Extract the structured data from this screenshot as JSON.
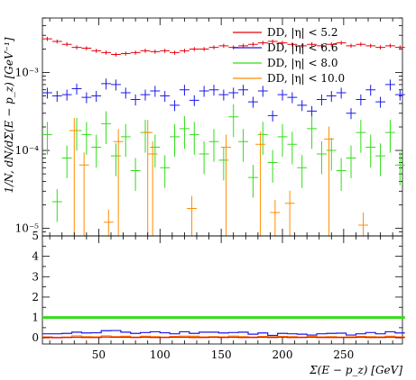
{
  "chart_data": [
    {
      "type": "scatter",
      "role": "main",
      "ylabel": "1/N, dN/dΣ(E − p_z) [GeV⁻¹]",
      "yscale": "log",
      "ylim": [
        8e-06,
        0.005
      ],
      "xlim": [
        4,
        298
      ],
      "ytick_labels": [
        {
          "value": 1e-05,
          "label": "10⁻⁵"
        },
        {
          "value": 0.0001,
          "label": "10⁻⁴"
        },
        {
          "value": 0.001,
          "label": "10⁻³"
        }
      ],
      "legend_position": "top-right",
      "series": [
        {
          "name": "DD, |η| < 5.2",
          "color": "#e8000b",
          "marker": "errorbar",
          "x": [
            8,
            16,
            24,
            32,
            40,
            48,
            56,
            64,
            72,
            80,
            88,
            96,
            104,
            112,
            120,
            128,
            136,
            144,
            152,
            160,
            168,
            176,
            184,
            192,
            200,
            208,
            216,
            224,
            232,
            240,
            248,
            256,
            264,
            272,
            280,
            288,
            296
          ],
          "y": [
            0.0027,
            0.0025,
            0.0023,
            0.0021,
            0.00205,
            0.0019,
            0.0018,
            0.0017,
            0.00175,
            0.0018,
            0.0019,
            0.00185,
            0.0019,
            0.0018,
            0.0019,
            0.002,
            0.002,
            0.0021,
            0.0022,
            0.0021,
            0.0022,
            0.0023,
            0.0024,
            0.0025,
            0.0024,
            0.0023,
            0.0022,
            0.0023,
            0.0022,
            0.0023,
            0.0024,
            0.0022,
            0.0023,
            0.0022,
            0.0021,
            0.0022,
            0.0021
          ]
        },
        {
          "name": "DD, |η| < 6.6",
          "color": "#1a1ae6",
          "marker": "errorbar",
          "x": [
            8,
            16,
            24,
            32,
            40,
            48,
            56,
            64,
            72,
            80,
            88,
            96,
            104,
            112,
            120,
            128,
            136,
            144,
            152,
            160,
            168,
            176,
            184,
            192,
            200,
            208,
            216,
            224,
            232,
            240,
            248,
            256,
            264,
            272,
            280,
            288,
            296
          ],
          "y": [
            0.00055,
            0.0005,
            0.00052,
            0.00062,
            0.00048,
            0.0005,
            0.00072,
            0.0007,
            0.00055,
            0.00045,
            0.00052,
            0.00058,
            0.0005,
            0.00038,
            0.0006,
            0.00044,
            0.00058,
            0.0006,
            0.00052,
            0.00055,
            0.0006,
            0.00042,
            0.00058,
            0.00028,
            0.00052,
            0.00048,
            0.00038,
            0.00032,
            0.00045,
            0.0005,
            0.00055,
            0.0003,
            0.00045,
            0.0006,
            0.00042,
            0.0007,
            0.00052
          ]
        },
        {
          "name": "DD, |η| < 8.0",
          "color": "#33dd1a",
          "marker": "errorbar",
          "x": [
            8,
            16,
            24,
            32,
            40,
            48,
            56,
            64,
            72,
            80,
            88,
            96,
            104,
            112,
            120,
            128,
            136,
            144,
            152,
            160,
            168,
            176,
            184,
            192,
            200,
            208,
            216,
            224,
            232,
            240,
            248,
            256,
            264,
            272,
            280,
            288,
            296
          ],
          "y": [
            0.00016,
            2.2e-05,
            8e-05,
            0.00018,
            0.00016,
            0.00011,
            0.00022,
            8.5e-05,
            0.00015,
            5.5e-05,
            0.00017,
            0.00011,
            6e-05,
            0.00015,
            0.00019,
            0.00016,
            9e-05,
            0.00013,
            7.5e-05,
            0.00027,
            0.00013,
            4.5e-05,
            0.00016,
            7e-05,
            0.00015,
            0.00012,
            6e-05,
            0.00019,
            9e-05,
            0.0001,
            5.5e-05,
            8e-05,
            0.00017,
            0.00011,
            8.5e-05,
            0.00017,
            6.5e-05
          ]
        },
        {
          "name": "DD, |η| < 10.0",
          "color": "#ff8c00",
          "marker": "errorbar",
          "x": [
            30,
            38,
            58,
            66,
            90,
            94,
            126,
            154,
            182,
            194,
            206,
            238,
            266
          ],
          "y": [
            0.00018,
            6.5e-05,
            1.2e-05,
            0.00013,
            0.00017,
            9e-05,
            1.8e-05,
            0.00011,
            0.00012,
            1.6e-05,
            2.1e-05,
            0.00014,
            1.1e-05
          ]
        }
      ]
    },
    {
      "type": "scatter",
      "role": "ratio",
      "xlabel": "Σ(E − p_z) [GeV]",
      "ylim": [
        -0.3,
        5
      ],
      "xlim": [
        4,
        298
      ],
      "yticks": [
        0,
        1,
        2,
        3,
        4,
        5
      ],
      "xticks": [
        50,
        100,
        150,
        200,
        250
      ],
      "series": [
        {
          "name": "DD, |η| < 8.0",
          "color": "#33dd1a",
          "x": [
            8,
            16,
            24,
            32,
            40,
            48,
            56,
            64,
            72,
            80,
            88,
            96,
            104,
            112,
            120,
            128,
            136,
            144,
            152,
            160,
            168,
            176,
            184,
            192,
            200,
            208,
            216,
            224,
            232,
            240,
            248,
            256,
            264,
            272,
            280,
            288,
            296
          ],
          "y": [
            1,
            1,
            1,
            1,
            1,
            1,
            1,
            1,
            1,
            1,
            1,
            1,
            1,
            1,
            1,
            1,
            1,
            1,
            1,
            1,
            1,
            1,
            1,
            1,
            1,
            1,
            1,
            1,
            1,
            1,
            1,
            1,
            1,
            1,
            1,
            1,
            1
          ]
        },
        {
          "name": "DD, |η| < 6.6",
          "color": "#1a1ae6",
          "x": [
            8,
            16,
            24,
            32,
            40,
            48,
            56,
            64,
            72,
            80,
            88,
            96,
            104,
            112,
            120,
            128,
            136,
            144,
            152,
            160,
            168,
            176,
            184,
            192,
            200,
            208,
            216,
            224,
            232,
            240,
            248,
            256,
            264,
            272,
            280,
            288,
            296
          ],
          "y": [
            0.2,
            0.2,
            0.22,
            0.28,
            0.24,
            0.25,
            0.35,
            0.36,
            0.28,
            0.22,
            0.26,
            0.3,
            0.25,
            0.2,
            0.3,
            0.22,
            0.28,
            0.28,
            0.24,
            0.26,
            0.28,
            0.18,
            0.24,
            0.12,
            0.22,
            0.2,
            0.18,
            0.14,
            0.2,
            0.22,
            0.23,
            0.14,
            0.2,
            0.26,
            0.2,
            0.3,
            0.24
          ]
        },
        {
          "name": "DD, |η| < 10.0",
          "color": "#ff8c00",
          "x": [
            8,
            16,
            24,
            32,
            40,
            48,
            56,
            64,
            72,
            80,
            88,
            96,
            104,
            112,
            120,
            128,
            136,
            144,
            152,
            160,
            168,
            176,
            184,
            192,
            200,
            208,
            216,
            224,
            232,
            240,
            248,
            256,
            264,
            272,
            280,
            288,
            296
          ],
          "y": [
            0.05,
            0.02,
            0.04,
            0.1,
            0.06,
            0.05,
            0.1,
            0.06,
            0.08,
            0.04,
            0.08,
            0.06,
            0.04,
            0.07,
            0.09,
            0.08,
            0.05,
            0.06,
            0.05,
            0.09,
            0.06,
            0.04,
            0.07,
            0.05,
            0.07,
            0.06,
            0.04,
            0.08,
            0.05,
            0.06,
            0.04,
            0.05,
            0.07,
            0.06,
            0.05,
            0.08,
            0.05
          ]
        },
        {
          "name": "DD, |η| < 5.2",
          "color": "#e8000b",
          "x": [
            8,
            16,
            24,
            32,
            40,
            48,
            56,
            64,
            72,
            80,
            88,
            96,
            104,
            112,
            120,
            128,
            136,
            144,
            152,
            160,
            168,
            176,
            184,
            192,
            200,
            208,
            216,
            224,
            232,
            240,
            248,
            256,
            264,
            272,
            280,
            288,
            296
          ],
          "y": [
            0.02,
            0.01,
            0.02,
            0.03,
            0.02,
            0.02,
            0.04,
            0.03,
            0.03,
            0.02,
            0.03,
            0.02,
            0.02,
            0.03,
            0.03,
            0.02,
            0.02,
            0.03,
            0.02,
            0.03,
            0.02,
            0.02,
            0.03,
            0.02,
            0.03,
            0.02,
            0.02,
            0.03,
            0.02,
            0.02,
            0.02,
            0.02,
            0.03,
            0.02,
            0.02,
            0.03,
            0.02
          ]
        }
      ]
    }
  ]
}
